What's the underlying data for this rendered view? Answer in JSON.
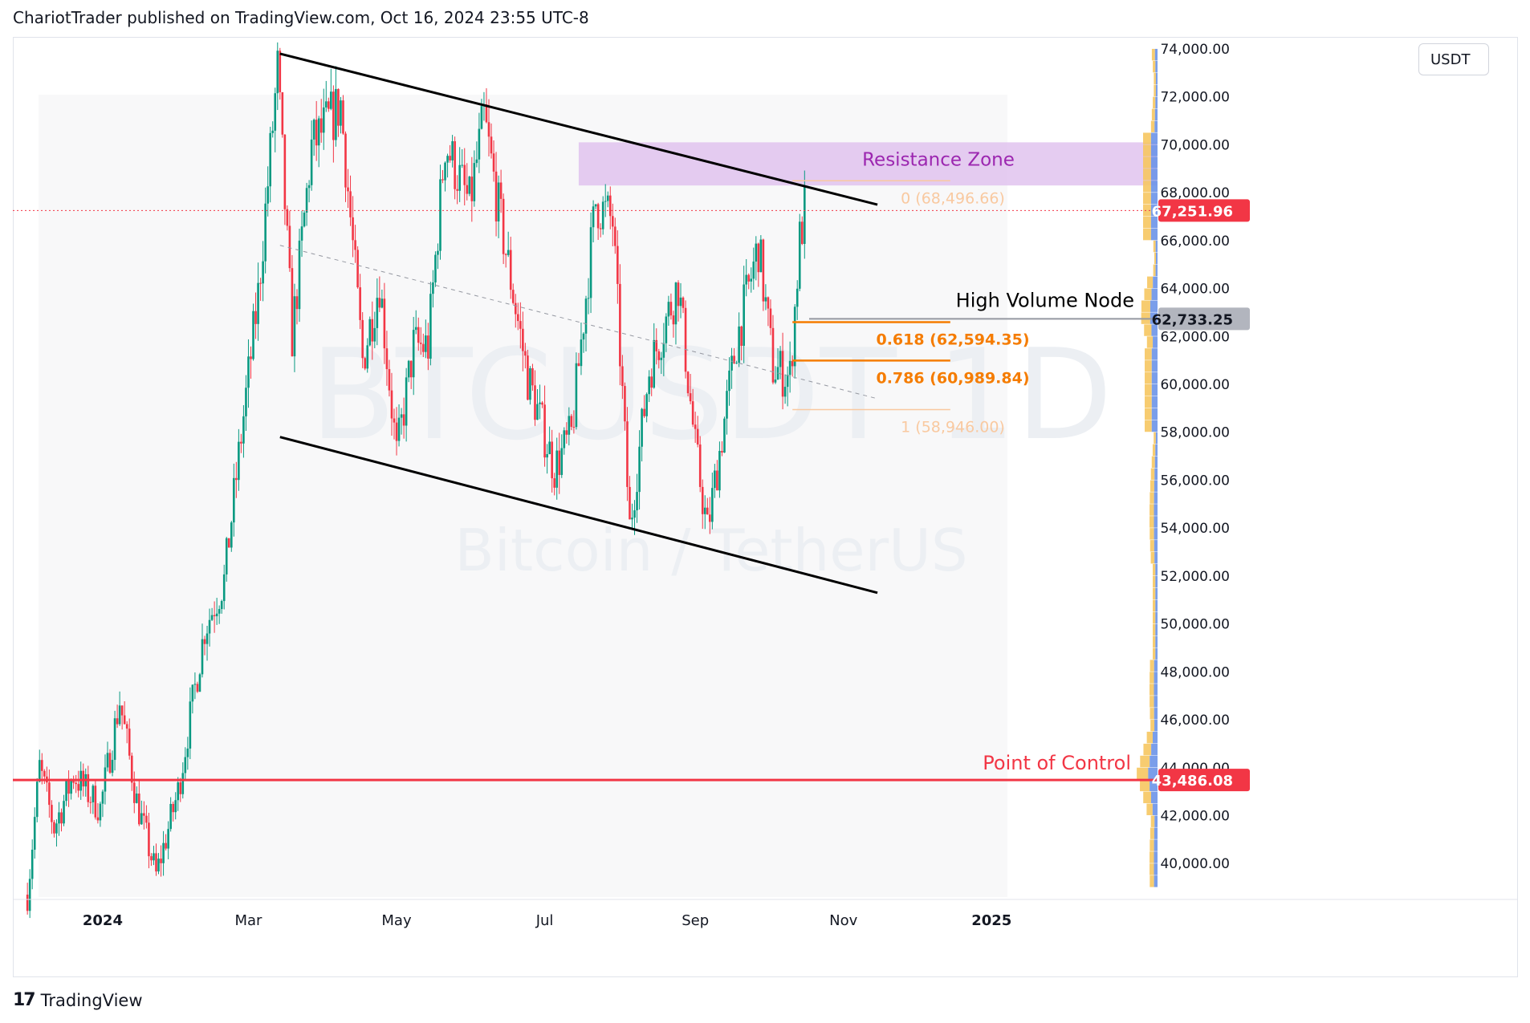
{
  "header": {
    "text": "ChariotTrader published on TradingView.com, Oct 16, 2024 23:55 UTC-8"
  },
  "currency_button": "USDT",
  "footer": {
    "logo_glyph": "17",
    "brand": "TradingView"
  },
  "colors": {
    "up": "#089981",
    "down": "#f23645",
    "resistance": "#e1c3ef",
    "resistance_text": "#9c27b0",
    "fib_main": "#f57c00",
    "fib_light": "#f9c9a0",
    "poc": "#f23645",
    "price_tag": "#f23645",
    "hvn_tag": "#b2b5be"
  },
  "chart_data": {
    "type": "candlestick",
    "symbol": "BTCUSDT",
    "timeframe": "1D",
    "watermark_top": "BTCUSDT 1D",
    "watermark_bottom": "Bitcoin / TetherUS",
    "currency": "USDT",
    "x_axis_labels": [
      "2024",
      "Mar",
      "May",
      "Jul",
      "Sep",
      "Nov",
      "2025"
    ],
    "y_axis_labels": [
      "74,000.00",
      "72,000.00",
      "70,000.00",
      "68,000.00",
      "66,000.00",
      "64,000.00",
      "62,000.00",
      "60,000.00",
      "58,000.00",
      "56,000.00",
      "54,000.00",
      "52,000.00",
      "50,000.00",
      "48,000.00",
      "46,000.00",
      "44,000.00",
      "42,000.00",
      "40,000.00"
    ],
    "ylim": [
      38500,
      74500
    ],
    "xlim": [
      "2023-11-25",
      "2025-03-10"
    ],
    "last_price": "67,251.96",
    "close_series": [
      {
        "date": "2023-12-01",
        "close": 38700
      },
      {
        "date": "2023-12-06",
        "close": 44000
      },
      {
        "date": "2023-12-12",
        "close": 41500
      },
      {
        "date": "2023-12-20",
        "close": 43700
      },
      {
        "date": "2023-12-31",
        "close": 42300
      },
      {
        "date": "2024-01-08",
        "close": 46800
      },
      {
        "date": "2024-01-15",
        "close": 42600
      },
      {
        "date": "2024-01-23",
        "close": 39500
      },
      {
        "date": "2024-02-01",
        "close": 43000
      },
      {
        "date": "2024-02-12",
        "close": 49800
      },
      {
        "date": "2024-02-20",
        "close": 51800
      },
      {
        "date": "2024-02-26",
        "close": 57000
      },
      {
        "date": "2024-03-05",
        "close": 63700
      },
      {
        "date": "2024-03-13",
        "close": 73100
      },
      {
        "date": "2024-03-19",
        "close": 62000
      },
      {
        "date": "2024-03-27",
        "close": 69900
      },
      {
        "date": "2024-04-08",
        "close": 71700
      },
      {
        "date": "2024-04-17",
        "close": 61000
      },
      {
        "date": "2024-04-24",
        "close": 64300
      },
      {
        "date": "2024-05-01",
        "close": 57000
      },
      {
        "date": "2024-05-08",
        "close": 61600
      },
      {
        "date": "2024-05-14",
        "close": 61600
      },
      {
        "date": "2024-05-21",
        "close": 70100
      },
      {
        "date": "2024-05-31",
        "close": 67500
      },
      {
        "date": "2024-06-06",
        "close": 71100
      },
      {
        "date": "2024-06-12",
        "close": 67300
      },
      {
        "date": "2024-06-24",
        "close": 60300
      },
      {
        "date": "2024-07-05",
        "close": 56500
      },
      {
        "date": "2024-07-12",
        "close": 57900
      },
      {
        "date": "2024-07-22",
        "close": 67600
      },
      {
        "date": "2024-07-29",
        "close": 66800
      },
      {
        "date": "2024-08-05",
        "close": 54000
      },
      {
        "date": "2024-08-13",
        "close": 60600
      },
      {
        "date": "2024-08-25",
        "close": 64200
      },
      {
        "date": "2024-09-01",
        "close": 57300
      },
      {
        "date": "2024-09-06",
        "close": 53900
      },
      {
        "date": "2024-09-18",
        "close": 61800
      },
      {
        "date": "2024-09-27",
        "close": 65800
      },
      {
        "date": "2024-10-03",
        "close": 60700
      },
      {
        "date": "2024-10-10",
        "close": 60300
      },
      {
        "date": "2024-10-14",
        "close": 66000
      },
      {
        "date": "2024-10-16",
        "close": 67252
      }
    ],
    "annotations": {
      "resistance_zone": {
        "label": "Resistance Zone",
        "from_date": "2024-07-15",
        "price_low": 68300,
        "price_high": 70100
      },
      "fib_retracement": {
        "start_date": "2024-10-11",
        "end_date": "2024-12-15",
        "levels": [
          {
            "ratio": "0",
            "price": 68496.66,
            "label": "0 (68,496.66)",
            "style": "light"
          },
          {
            "ratio": "0.618",
            "price": 62594.35,
            "label": "0.618 (62,594.35)",
            "style": "main"
          },
          {
            "ratio": "0.786",
            "price": 60989.84,
            "label": "0.786 (60,989.84)",
            "style": "main"
          },
          {
            "ratio": "1",
            "price": 58946.0,
            "label": "1 (58,946.00)",
            "style": "light"
          }
        ]
      },
      "high_volume_node": {
        "label": "High Volume Node",
        "price": 62733.25,
        "tag": "62,733.25"
      },
      "point_of_control": {
        "label": "Point of Control",
        "price": 43486.08,
        "tag": "43,486.08"
      },
      "channel_upper": {
        "from": {
          "date": "2024-03-14",
          "price": 73800
        },
        "to": {
          "date": "2024-11-15",
          "price": 67500
        }
      },
      "channel_lower": {
        "from": {
          "date": "2024-03-14",
          "price": 57800
        },
        "to": {
          "date": "2024-11-15",
          "price": 51300
        }
      },
      "channel_mid": {
        "from": {
          "date": "2024-03-14",
          "price": 65800
        },
        "to": {
          "date": "2024-11-15",
          "price": 59400
        }
      }
    }
  }
}
